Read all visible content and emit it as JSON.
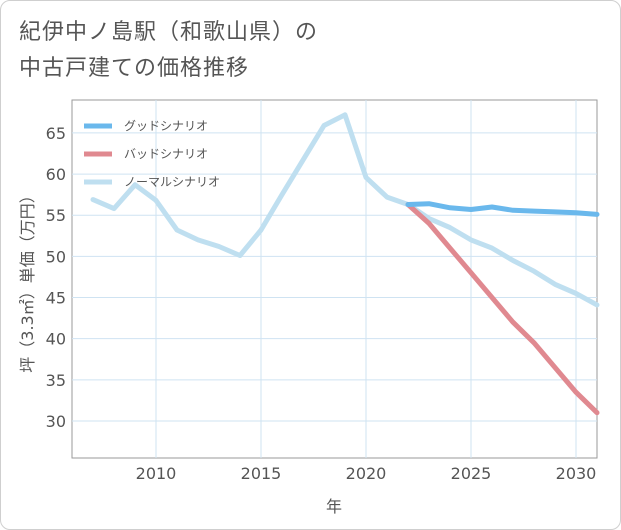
{
  "title": {
    "line1": "紀伊中ノ島駅（和歌山県）の",
    "line2": "中古戸建ての価格推移"
  },
  "chart_data": {
    "type": "line",
    "xlabel": "年",
    "ylabel": "坪（3.3㎡）単価（万円）",
    "xlim": [
      2006,
      2031
    ],
    "ylim": [
      25.5,
      69
    ],
    "x_ticks": [
      2010,
      2015,
      2020,
      2025,
      2030
    ],
    "y_ticks": [
      30,
      35,
      40,
      45,
      50,
      55,
      60,
      65
    ],
    "grid": true,
    "legend_position": "top-left",
    "series": [
      {
        "name": "グッドシナリオ",
        "color": "#6ab8ec",
        "x": [
          2022,
          2023,
          2024,
          2025,
          2026,
          2027,
          2028,
          2029,
          2030,
          2031
        ],
        "values": [
          56.3,
          56.4,
          55.9,
          55.7,
          56.0,
          55.6,
          55.5,
          55.4,
          55.3,
          55.1
        ]
      },
      {
        "name": "バッドシナリオ",
        "color": "#e08990",
        "x": [
          2022,
          2023,
          2024,
          2025,
          2026,
          2027,
          2028,
          2029,
          2030,
          2031
        ],
        "values": [
          56.3,
          54.0,
          51.0,
          48.0,
          45.0,
          42.0,
          39.5,
          36.5,
          33.5,
          31.0
        ]
      },
      {
        "name": "ノーマルシナリオ",
        "color": "#bfdff0",
        "x": [
          2007,
          2008,
          2009,
          2010,
          2011,
          2012,
          2013,
          2014,
          2015,
          2016,
          2017,
          2018,
          2019,
          2020,
          2021,
          2022,
          2023,
          2024,
          2025,
          2026,
          2027,
          2028,
          2029,
          2030,
          2031
        ],
        "values": [
          56.9,
          55.8,
          58.7,
          56.8,
          53.2,
          52.0,
          51.2,
          50.1,
          53.2,
          57.5,
          61.7,
          65.9,
          67.2,
          59.6,
          57.2,
          56.3,
          54.6,
          53.5,
          52.0,
          51.0,
          49.5,
          48.2,
          46.6,
          45.5,
          44.1
        ]
      }
    ]
  }
}
